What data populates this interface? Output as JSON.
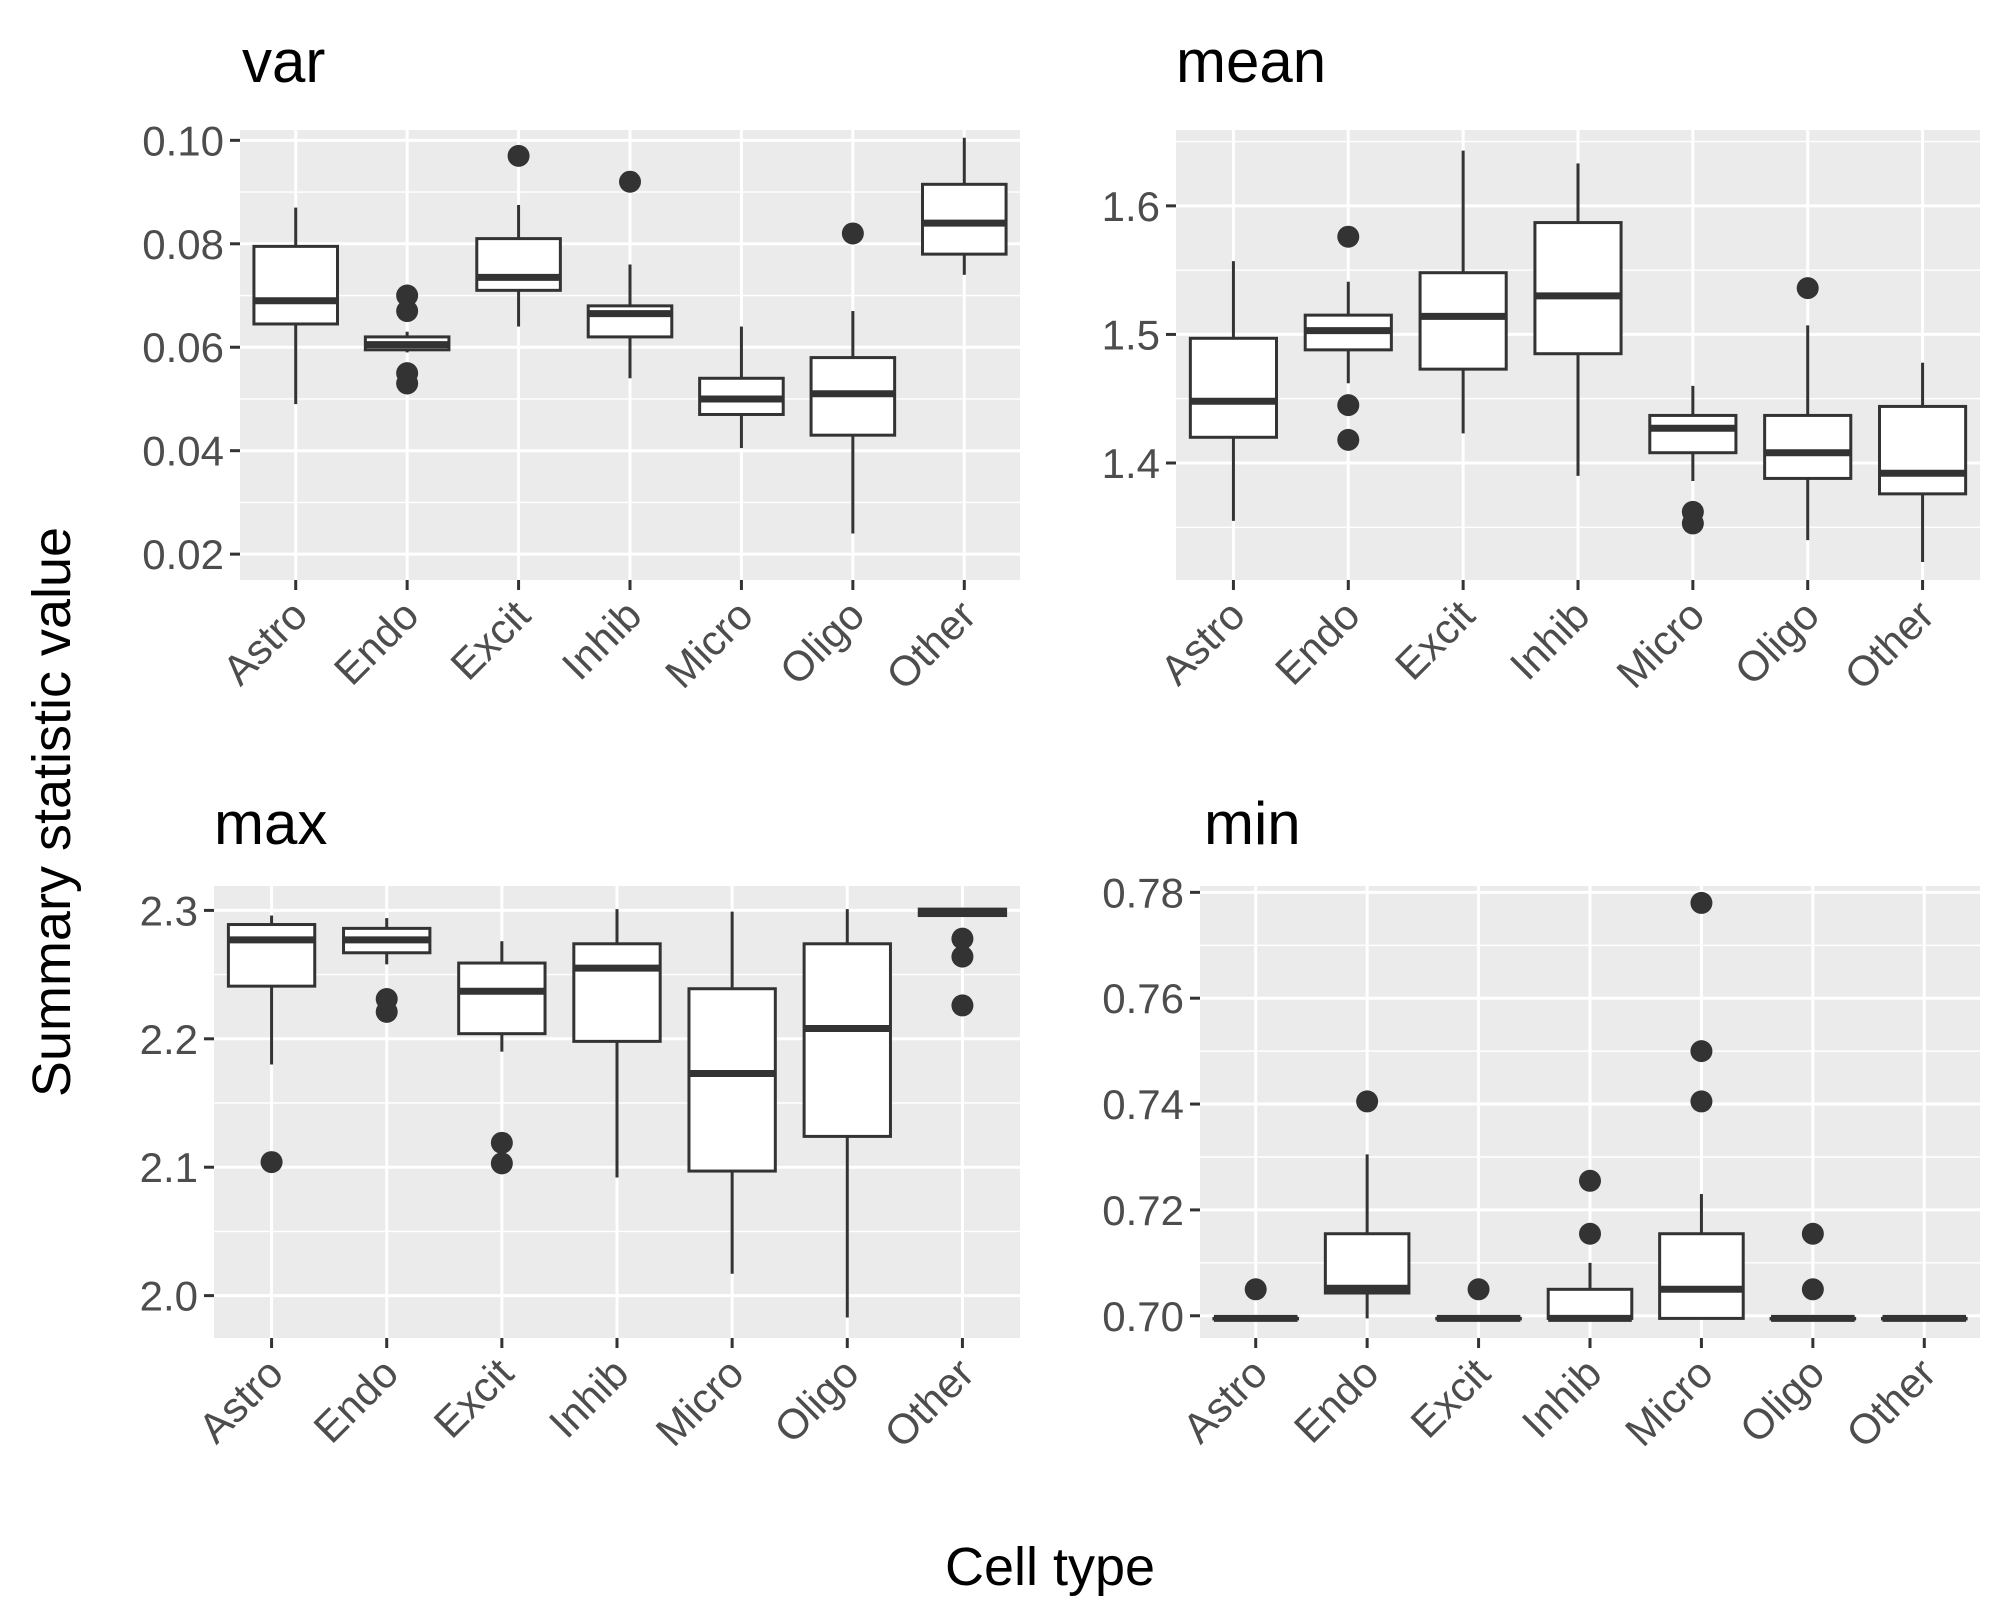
{
  "figure": {
    "xlabel": "Cell type",
    "ylabel": "Summary statistic value"
  },
  "chart_data": [
    {
      "type": "boxplot",
      "title": "var",
      "categories": [
        "Astro",
        "Endo",
        "Excit",
        "Inhib",
        "Micro",
        "Oligo",
        "Other"
      ],
      "ylim": [
        0.015,
        0.102
      ],
      "yticks": [
        0.02,
        0.04,
        0.06,
        0.08,
        0.1
      ],
      "ytick_labels": [
        "0.02",
        "0.04",
        "0.06",
        "0.08",
        "0.10"
      ],
      "boxes": [
        {
          "category": "Astro",
          "whisker_low": 0.049,
          "q1": 0.0645,
          "median": 0.069,
          "q3": 0.0795,
          "whisker_high": 0.087,
          "outliers": []
        },
        {
          "category": "Endo",
          "whisker_low": 0.059,
          "q1": 0.0595,
          "median": 0.0605,
          "q3": 0.062,
          "whisker_high": 0.063,
          "outliers": [
            0.07,
            0.067,
            0.055,
            0.053
          ]
        },
        {
          "category": "Excit",
          "whisker_low": 0.064,
          "q1": 0.071,
          "median": 0.0735,
          "q3": 0.081,
          "whisker_high": 0.0875,
          "outliers": [
            0.097
          ]
        },
        {
          "category": "Inhib",
          "whisker_low": 0.054,
          "q1": 0.062,
          "median": 0.0665,
          "q3": 0.068,
          "whisker_high": 0.076,
          "outliers": [
            0.092
          ]
        },
        {
          "category": "Micro",
          "whisker_low": 0.0405,
          "q1": 0.047,
          "median": 0.05,
          "q3": 0.054,
          "whisker_high": 0.064,
          "outliers": []
        },
        {
          "category": "Oligo",
          "whisker_low": 0.024,
          "q1": 0.043,
          "median": 0.051,
          "q3": 0.058,
          "whisker_high": 0.067,
          "outliers": [
            0.082
          ]
        },
        {
          "category": "Other",
          "whisker_low": 0.074,
          "q1": 0.078,
          "median": 0.084,
          "q3": 0.0915,
          "whisker_high": 0.1005,
          "outliers": []
        }
      ]
    },
    {
      "type": "boxplot",
      "title": "mean",
      "categories": [
        "Astro",
        "Endo",
        "Excit",
        "Inhib",
        "Micro",
        "Oligo",
        "Other"
      ],
      "ylim": [
        1.309,
        1.659
      ],
      "yticks": [
        1.4,
        1.5,
        1.6
      ],
      "ytick_labels": [
        "1.4",
        "1.5",
        "1.6"
      ],
      "boxes": [
        {
          "category": "Astro",
          "whisker_low": 1.355,
          "q1": 1.42,
          "median": 1.448,
          "q3": 1.497,
          "whisker_high": 1.557,
          "outliers": []
        },
        {
          "category": "Endo",
          "whisker_low": 1.462,
          "q1": 1.488,
          "median": 1.503,
          "q3": 1.515,
          "whisker_high": 1.541,
          "outliers": [
            1.576,
            1.445,
            1.418
          ]
        },
        {
          "category": "Excit",
          "whisker_low": 1.423,
          "q1": 1.473,
          "median": 1.514,
          "q3": 1.548,
          "whisker_high": 1.643,
          "outliers": []
        },
        {
          "category": "Inhib",
          "whisker_low": 1.39,
          "q1": 1.485,
          "median": 1.53,
          "q3": 1.587,
          "whisker_high": 1.633,
          "outliers": []
        },
        {
          "category": "Micro",
          "whisker_low": 1.386,
          "q1": 1.408,
          "median": 1.427,
          "q3": 1.437,
          "whisker_high": 1.46,
          "outliers": [
            1.362,
            1.353
          ]
        },
        {
          "category": "Oligo",
          "whisker_low": 1.34,
          "q1": 1.388,
          "median": 1.408,
          "q3": 1.437,
          "whisker_high": 1.507,
          "outliers": [
            1.536
          ]
        },
        {
          "category": "Other",
          "whisker_low": 1.323,
          "q1": 1.376,
          "median": 1.392,
          "q3": 1.444,
          "whisker_high": 1.478,
          "outliers": []
        }
      ]
    },
    {
      "type": "boxplot",
      "title": "max",
      "categories": [
        "Astro",
        "Endo",
        "Excit",
        "Inhib",
        "Micro",
        "Oligo",
        "Other"
      ],
      "ylim": [
        1.967,
        2.319
      ],
      "yticks": [
        2.0,
        2.1,
        2.2,
        2.3
      ],
      "ytick_labels": [
        "2.0",
        "2.1",
        "2.2",
        "2.3"
      ],
      "boxes": [
        {
          "category": "Astro",
          "whisker_low": 2.18,
          "q1": 2.241,
          "median": 2.277,
          "q3": 2.289,
          "whisker_high": 2.296,
          "outliers": [
            2.104
          ]
        },
        {
          "category": "Endo",
          "whisker_low": 2.258,
          "q1": 2.267,
          "median": 2.277,
          "q3": 2.286,
          "whisker_high": 2.294,
          "outliers": [
            2.231,
            2.221
          ]
        },
        {
          "category": "Excit",
          "whisker_low": 2.19,
          "q1": 2.204,
          "median": 2.237,
          "q3": 2.259,
          "whisker_high": 2.276,
          "outliers": [
            2.119,
            2.103
          ]
        },
        {
          "category": "Inhib",
          "whisker_low": 2.092,
          "q1": 2.198,
          "median": 2.255,
          "q3": 2.274,
          "whisker_high": 2.301,
          "outliers": []
        },
        {
          "category": "Micro",
          "whisker_low": 2.017,
          "q1": 2.097,
          "median": 2.173,
          "q3": 2.239,
          "whisker_high": 2.299,
          "outliers": []
        },
        {
          "category": "Oligo",
          "whisker_low": 1.983,
          "q1": 2.124,
          "median": 2.208,
          "q3": 2.274,
          "whisker_high": 2.301,
          "outliers": []
        },
        {
          "category": "Other",
          "whisker_low": 2.296,
          "q1": 2.296,
          "median": 2.299,
          "q3": 2.301,
          "whisker_high": 2.302,
          "outliers": [
            2.278,
            2.264,
            2.226
          ]
        }
      ]
    },
    {
      "type": "boxplot",
      "title": "min",
      "categories": [
        "Astro",
        "Endo",
        "Excit",
        "Inhib",
        "Micro",
        "Oligo",
        "Other"
      ],
      "ylim": [
        0.6958,
        0.7812
      ],
      "yticks": [
        0.7,
        0.72,
        0.74,
        0.76,
        0.78
      ],
      "ytick_labels": [
        "0.70",
        "0.72",
        "0.74",
        "0.76",
        "0.78"
      ],
      "boxes": [
        {
          "category": "Astro",
          "whisker_low": 0.6995,
          "q1": 0.6995,
          "median": 0.6995,
          "q3": 0.6995,
          "whisker_high": 0.6995,
          "outliers": [
            0.705
          ]
        },
        {
          "category": "Endo",
          "whisker_low": 0.6995,
          "q1": 0.7043,
          "median": 0.7052,
          "q3": 0.7155,
          "whisker_high": 0.7305,
          "outliers": [
            0.7405
          ]
        },
        {
          "category": "Excit",
          "whisker_low": 0.6995,
          "q1": 0.6995,
          "median": 0.6995,
          "q3": 0.6995,
          "whisker_high": 0.6995,
          "outliers": [
            0.705
          ]
        },
        {
          "category": "Inhib",
          "whisker_low": 0.6995,
          "q1": 0.6995,
          "median": 0.6995,
          "q3": 0.705,
          "whisker_high": 0.71,
          "outliers": [
            0.7255,
            0.7155
          ]
        },
        {
          "category": "Micro",
          "whisker_low": 0.6995,
          "q1": 0.6995,
          "median": 0.705,
          "q3": 0.7155,
          "whisker_high": 0.723,
          "outliers": [
            0.778,
            0.75,
            0.7405
          ]
        },
        {
          "category": "Oligo",
          "whisker_low": 0.6995,
          "q1": 0.6995,
          "median": 0.6995,
          "q3": 0.6995,
          "whisker_high": 0.6995,
          "outliers": [
            0.7155,
            0.705
          ]
        },
        {
          "category": "Other",
          "whisker_low": 0.6995,
          "q1": 0.6995,
          "median": 0.6995,
          "q3": 0.6995,
          "whisker_high": 0.6995,
          "outliers": []
        }
      ]
    }
  ]
}
